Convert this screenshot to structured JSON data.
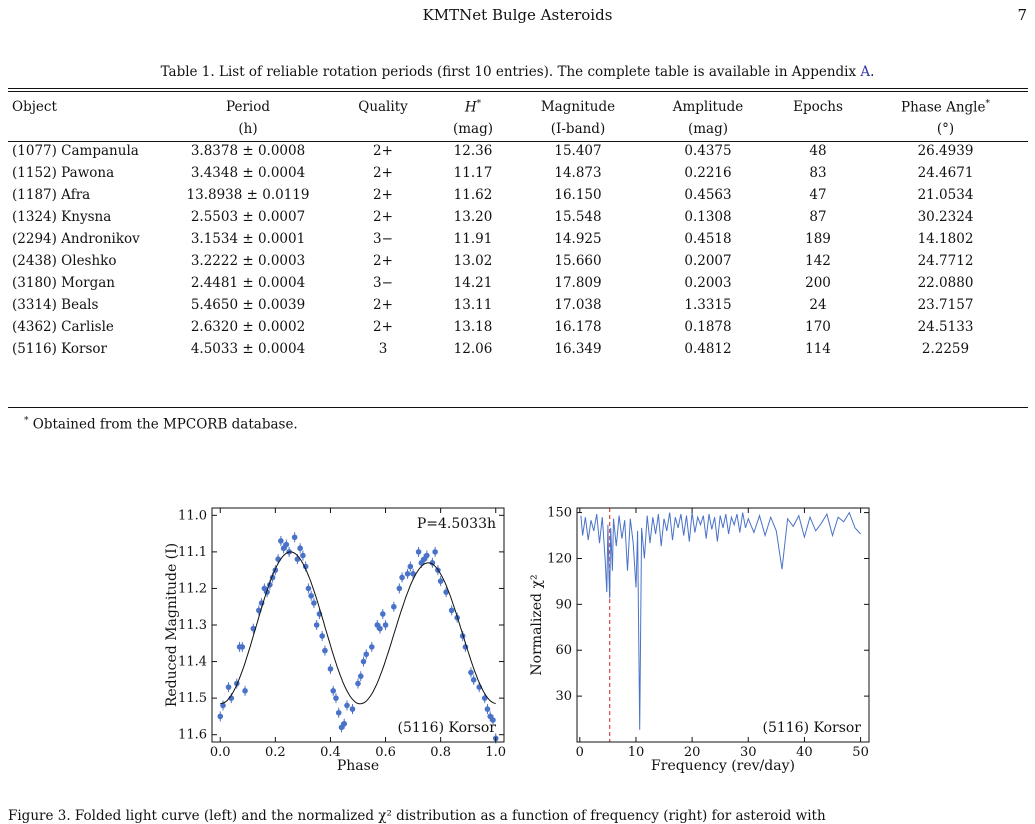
{
  "header": {
    "running_title": "KMTNet Bulge Asteroids",
    "page_number": "7"
  },
  "table": {
    "caption_prefix": "Table 1. List of reliable rotation periods (first 10 entries). The complete table is available in Appendix ",
    "caption_ref": "A",
    "caption_suffix": ".",
    "columns": [
      {
        "name": "Object",
        "unit": ""
      },
      {
        "name": "Period",
        "unit": "(h)"
      },
      {
        "name": "Quality",
        "unit": ""
      },
      {
        "name": "H",
        "unit": "(mag)"
      },
      {
        "name": "Magnitude",
        "unit": "(I-band)"
      },
      {
        "name": "Amplitude",
        "unit": "(mag)"
      },
      {
        "name": "Epochs",
        "unit": ""
      },
      {
        "name": "Phase Angle",
        "unit": "(°)"
      }
    ],
    "rows": [
      [
        "(1077) Campanula",
        "3.8378 ± 0.0008",
        "2+",
        "12.36",
        "15.407",
        "0.4375",
        "48",
        "26.4939"
      ],
      [
        "(1152) Pawona",
        "3.4348 ± 0.0004",
        "2+",
        "11.17",
        "14.873",
        "0.2216",
        "83",
        "24.4671"
      ],
      [
        "(1187) Afra",
        "13.8938 ± 0.0119",
        "2+",
        "11.62",
        "16.150",
        "0.4563",
        "47",
        "21.0534"
      ],
      [
        "(1324) Knysna",
        "2.5503 ± 0.0007",
        "2+",
        "13.20",
        "15.548",
        "0.1308",
        "87",
        "30.2324"
      ],
      [
        "(2294) Andronikov",
        "3.1534 ± 0.0001",
        "3−",
        "11.91",
        "14.925",
        "0.4518",
        "189",
        "14.1802"
      ],
      [
        "(2438) Oleshko",
        "3.2222 ± 0.0003",
        "2+",
        "13.02",
        "15.660",
        "0.2007",
        "142",
        "24.7712"
      ],
      [
        "(3180) Morgan",
        "2.4481 ± 0.0004",
        "3−",
        "14.21",
        "17.809",
        "0.2003",
        "200",
        "22.0880"
      ],
      [
        "(3314) Beals",
        "5.4650 ± 0.0039",
        "2+",
        "13.11",
        "17.038",
        "1.3315",
        "24",
        "23.7157"
      ],
      [
        "(4362) Carlisle",
        "2.6320 ± 0.0002",
        "2+",
        "13.18",
        "16.178",
        "0.1878",
        "170",
        "24.5133"
      ],
      [
        "(5116) Korsor",
        "4.5033 ± 0.0004",
        "3",
        "12.06",
        "16.349",
        "0.4812",
        "114",
        "2.2259"
      ]
    ],
    "footnote": "Obtained from the MPCORB database."
  },
  "chart_data": [
    {
      "type": "scatter",
      "annotation": "P=4.5033h",
      "object_label": "(5116) Korsor",
      "xlabel": "Phase",
      "ylabel": "Reduced Magnitude (I)",
      "xlim": [
        -0.03,
        1.03
      ],
      "ylim": [
        11.62,
        10.98
      ],
      "y_inverted": true,
      "xticks": [
        "0.0",
        "0.2",
        "0.4",
        "0.6",
        "0.8",
        "1.0"
      ],
      "yticks": [
        "11.0",
        "11.1",
        "11.2",
        "11.3",
        "11.4",
        "11.5",
        "11.6"
      ],
      "grid": false,
      "marker_color": "#4a72c8",
      "model_color": "#111111",
      "points": [
        [
          0.0,
          11.55
        ],
        [
          0.01,
          11.52
        ],
        [
          0.03,
          11.47
        ],
        [
          0.04,
          11.5
        ],
        [
          0.06,
          11.46
        ],
        [
          0.07,
          11.36
        ],
        [
          0.08,
          11.36
        ],
        [
          0.09,
          11.48
        ],
        [
          0.12,
          11.31
        ],
        [
          0.14,
          11.26
        ],
        [
          0.15,
          11.24
        ],
        [
          0.16,
          11.2
        ],
        [
          0.17,
          11.21
        ],
        [
          0.18,
          11.19
        ],
        [
          0.19,
          11.17
        ],
        [
          0.2,
          11.15
        ],
        [
          0.21,
          11.12
        ],
        [
          0.22,
          11.07
        ],
        [
          0.23,
          11.09
        ],
        [
          0.24,
          11.08
        ],
        [
          0.25,
          11.1
        ],
        [
          0.27,
          11.06
        ],
        [
          0.28,
          11.12
        ],
        [
          0.29,
          11.09
        ],
        [
          0.3,
          11.11
        ],
        [
          0.31,
          11.14
        ],
        [
          0.32,
          11.2
        ],
        [
          0.33,
          11.22
        ],
        [
          0.34,
          11.24
        ],
        [
          0.35,
          11.3
        ],
        [
          0.36,
          11.27
        ],
        [
          0.37,
          11.33
        ],
        [
          0.38,
          11.37
        ],
        [
          0.4,
          11.42
        ],
        [
          0.41,
          11.48
        ],
        [
          0.42,
          11.5
        ],
        [
          0.43,
          11.54
        ],
        [
          0.44,
          11.58
        ],
        [
          0.45,
          11.57
        ],
        [
          0.46,
          11.52
        ],
        [
          0.48,
          11.53
        ],
        [
          0.5,
          11.46
        ],
        [
          0.51,
          11.44
        ],
        [
          0.52,
          11.4
        ],
        [
          0.53,
          11.38
        ],
        [
          0.55,
          11.36
        ],
        [
          0.57,
          11.3
        ],
        [
          0.58,
          11.31
        ],
        [
          0.59,
          11.27
        ],
        [
          0.6,
          11.3
        ],
        [
          0.63,
          11.25
        ],
        [
          0.65,
          11.2
        ],
        [
          0.66,
          11.17
        ],
        [
          0.68,
          11.16
        ],
        [
          0.69,
          11.14
        ],
        [
          0.7,
          11.16
        ],
        [
          0.72,
          11.1
        ],
        [
          0.73,
          11.13
        ],
        [
          0.74,
          11.12
        ],
        [
          0.75,
          11.11
        ],
        [
          0.77,
          11.13
        ],
        [
          0.78,
          11.1
        ],
        [
          0.79,
          11.15
        ],
        [
          0.8,
          11.18
        ],
        [
          0.82,
          11.21
        ],
        [
          0.84,
          11.26
        ],
        [
          0.86,
          11.28
        ],
        [
          0.88,
          11.33
        ],
        [
          0.89,
          11.36
        ],
        [
          0.91,
          11.43
        ],
        [
          0.92,
          11.45
        ],
        [
          0.94,
          11.47
        ],
        [
          0.96,
          11.5
        ],
        [
          0.97,
          11.53
        ],
        [
          0.98,
          11.55
        ],
        [
          0.99,
          11.56
        ],
        [
          1.0,
          11.61
        ]
      ]
    },
    {
      "type": "line",
      "object_label": "(5116) Korsor",
      "xlabel": "Frequency (rev/day)",
      "ylabel": "Normalized χ²",
      "xlim": [
        -0.5,
        51.5
      ],
      "ylim": [
        0,
        153
      ],
      "xticks": [
        "0",
        "10",
        "20",
        "30",
        "40",
        "50"
      ],
      "yticks": [
        "30",
        "60",
        "90",
        "120",
        "150"
      ],
      "grid": false,
      "line_color": "#4a72c8",
      "best_frequency_color": "#cc2222",
      "best_frequency": 5.33,
      "x": [
        0.2,
        0.5,
        1,
        1.5,
        2,
        2.5,
        3,
        3.5,
        4,
        4.5,
        4.8,
        5.0,
        5.2,
        5.33,
        5.5,
        5.8,
        6,
        6.5,
        7,
        7.5,
        8,
        8.5,
        9,
        9.5,
        10,
        10.3,
        10.66,
        11,
        11.5,
        12,
        12.5,
        13,
        13.5,
        14,
        14.5,
        15,
        15.5,
        16,
        16.5,
        17,
        17.5,
        18,
        18.5,
        19,
        19.5,
        20,
        20.5,
        21,
        21.5,
        22,
        22.5,
        23,
        23.5,
        24,
        24.5,
        25,
        25.5,
        26,
        26.5,
        27,
        27.5,
        28,
        28.5,
        29,
        29.5,
        30,
        31,
        32,
        33,
        34,
        35,
        36,
        37,
        38,
        39,
        40,
        41,
        42,
        43,
        44,
        45,
        46,
        47,
        48,
        49,
        50
      ],
      "y": [
        148,
        135,
        147,
        132,
        145,
        138,
        149,
        130,
        147,
        120,
        98,
        142,
        108,
        94,
        140,
        112,
        146,
        128,
        148,
        133,
        145,
        112,
        146,
        130,
        101,
        138,
        8,
        140,
        120,
        148,
        130,
        147,
        136,
        149,
        128,
        146,
        138,
        150,
        132,
        147,
        140,
        149,
        135,
        148,
        131,
        150,
        137,
        147,
        142,
        148,
        133,
        149,
        139,
        147,
        131,
        148,
        140,
        149,
        136,
        147,
        142,
        149,
        137,
        150,
        140,
        146,
        137,
        148,
        135,
        147,
        138,
        113,
        146,
        141,
        148,
        134,
        147,
        138,
        143,
        149,
        135,
        147,
        144,
        150,
        140,
        136
      ]
    }
  ],
  "figure_caption": "Figure 3. Folded light curve (left) and the normalized χ² distribution as a function of frequency (right) for asteroid with"
}
